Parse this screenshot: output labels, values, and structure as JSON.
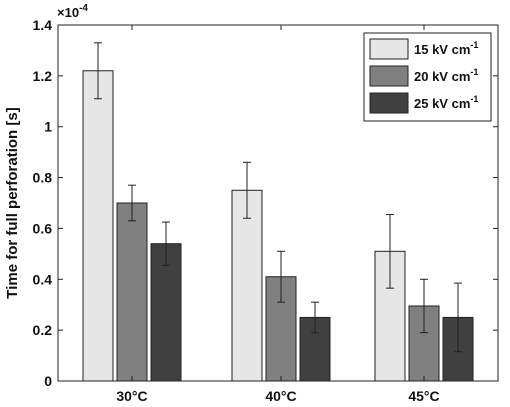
{
  "chart_data": {
    "type": "bar",
    "ylabel": "Time for full perforation [s]",
    "y_exponent_label": "×10",
    "y_exponent_power": "-4",
    "ylim": [
      0,
      1.4
    ],
    "yticks": [
      0,
      0.2,
      0.4,
      0.6,
      0.8,
      1,
      1.2,
      1.4
    ],
    "ytick_labels": [
      "0",
      "0.2",
      "0.4",
      "0.6",
      "0.8",
      "1",
      "1.2",
      "1.4"
    ],
    "categories": [
      "30°C",
      "40°C",
      "45°C"
    ],
    "legend_position": "top-right",
    "grid": false,
    "series": [
      {
        "name": "15 kV cm",
        "name_superscript": "-1",
        "color": "#e6e6e6",
        "values": [
          1.22,
          0.75,
          0.51
        ],
        "error": [
          0.11,
          0.11,
          0.145
        ]
      },
      {
        "name": "20 kV cm",
        "name_superscript": "-1",
        "color": "#808080",
        "values": [
          0.7,
          0.41,
          0.295
        ],
        "error": [
          0.07,
          0.1,
          0.105
        ]
      },
      {
        "name": "25 kV cm",
        "name_superscript": "-1",
        "color": "#404040",
        "values": [
          0.54,
          0.25,
          0.25
        ],
        "error": [
          0.085,
          0.06,
          0.135
        ]
      }
    ]
  }
}
